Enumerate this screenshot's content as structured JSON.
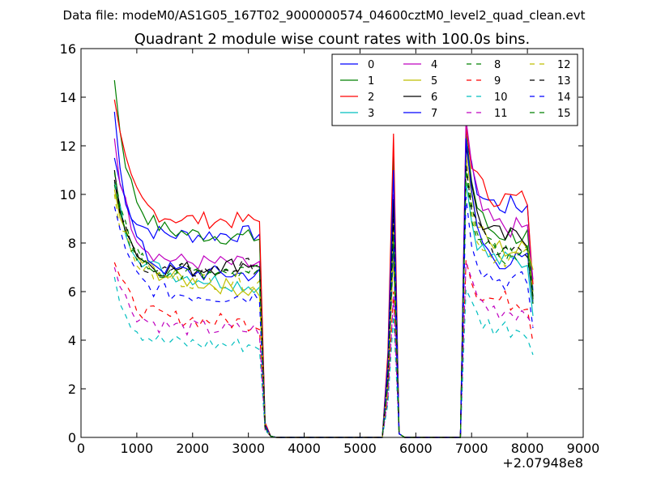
{
  "figure": {
    "suptitle": "Data file: modeM0/AS1G05_167T02_9000000574_04600cztM0_level2_quad_clean.evt"
  },
  "chart_data": {
    "type": "line",
    "title": "Quadrant 2 module wise count rates with 100.0s bins.",
    "xlabel": "",
    "ylabel": "",
    "x_offset_label": "+2.07948e8",
    "xlim": [
      0,
      9000
    ],
    "ylim": [
      0,
      16
    ],
    "xticks": [
      0,
      1000,
      2000,
      3000,
      4000,
      5000,
      6000,
      7000,
      8000,
      9000
    ],
    "yticks": [
      0,
      2,
      4,
      6,
      8,
      10,
      12,
      14,
      16
    ],
    "grid": false,
    "legend_position": "top-right",
    "segments": {
      "seg1": {
        "start": 600,
        "end": 3200,
        "step": 100
      },
      "seg2": [
        3300,
        3400
      ],
      "zero_range": [
        3500,
        5400
      ],
      "spike": [
        5500,
        5600,
        5700
      ],
      "zero_range2": [
        5800,
        6800
      ],
      "seg3": {
        "start": 6900,
        "end": 8100,
        "step": 100
      }
    },
    "series": [
      {
        "name": "0",
        "color": "#0000ff",
        "dash": "solid",
        "seg1_start": 11.5,
        "seg1_plateau": 8.2,
        "seg1_end": 8.4,
        "tail": [
          0.5,
          0.05
        ],
        "spike_peak": 9.0,
        "seg3_peak": 12.2,
        "seg3_plateau": 9.5,
        "seg3_end": 6.0
      },
      {
        "name": "1",
        "color": "#008000",
        "dash": "solid",
        "seg1_start": 14.7,
        "seg1_plateau": 8.5,
        "seg1_end": 8.2,
        "tail": [
          0.6,
          0.05
        ],
        "spike_peak": 11.8,
        "seg3_peak": 12.5,
        "seg3_plateau": 8.3,
        "seg3_end": 5.8
      },
      {
        "name": "2",
        "color": "#ff0000",
        "dash": "solid",
        "seg1_start": 13.9,
        "seg1_plateau": 9.0,
        "seg1_end": 8.9,
        "tail": [
          0.6,
          0.05
        ],
        "spike_peak": 12.5,
        "seg3_peak": 12.8,
        "seg3_plateau": 9.8,
        "seg3_end": 6.3
      },
      {
        "name": "3",
        "color": "#00bfbf",
        "dash": "solid",
        "seg1_start": 10.5,
        "seg1_plateau": 7.0,
        "seg1_end": 6.2,
        "tail": [
          0.4,
          0.05
        ],
        "spike_peak": 8.0,
        "seg3_peak": 10.5,
        "seg3_plateau": 7.2,
        "seg3_end": 5.0
      },
      {
        "name": "4",
        "color": "#bf00bf",
        "dash": "solid",
        "seg1_start": 12.3,
        "seg1_plateau": 7.3,
        "seg1_end": 7.1,
        "tail": [
          0.5,
          0.05
        ],
        "spike_peak": 10.0,
        "seg3_peak": 13.1,
        "seg3_plateau": 8.6,
        "seg3_end": 6.5
      },
      {
        "name": "5",
        "color": "#bfbf00",
        "dash": "solid",
        "seg1_start": 10.2,
        "seg1_plateau": 6.9,
        "seg1_end": 6.0,
        "tail": [
          0.4,
          0.05
        ],
        "spike_peak": 7.5,
        "seg3_peak": 11.6,
        "seg3_plateau": 7.7,
        "seg3_end": 6.9
      },
      {
        "name": "6",
        "color": "#000000",
        "dash": "solid",
        "seg1_start": 11.0,
        "seg1_plateau": 6.6,
        "seg1_end": 7.2,
        "tail": [
          0.5,
          0.05
        ],
        "spike_peak": 9.8,
        "seg3_peak": 12.0,
        "seg3_plateau": 8.2,
        "seg3_end": 5.7
      },
      {
        "name": "7",
        "color": "#0000ff",
        "dash": "solid",
        "seg1_start": 13.4,
        "seg1_plateau": 6.8,
        "seg1_end": 6.7,
        "tail": [
          0.5,
          0.05
        ],
        "spike_peak": 11.0,
        "seg3_peak": 12.3,
        "seg3_plateau": 7.2,
        "seg3_end": 5.5
      },
      {
        "name": "8",
        "color": "#008000",
        "dash": "dashed",
        "seg1_start": 10.9,
        "seg1_plateau": 6.6,
        "seg1_end": 7.0,
        "tail": [
          0.4,
          0.05
        ],
        "spike_peak": 8.6,
        "seg3_peak": 11.2,
        "seg3_plateau": 7.8,
        "seg3_end": 5.6
      },
      {
        "name": "9",
        "color": "#ff0000",
        "dash": "dashed",
        "seg1_start": 7.2,
        "seg1_plateau": 5.0,
        "seg1_end": 4.7,
        "tail": [
          0.3,
          0.05
        ],
        "spike_peak": 6.0,
        "seg3_peak": 7.3,
        "seg3_plateau": 5.6,
        "seg3_end": 3.9
      },
      {
        "name": "10",
        "color": "#00bfbf",
        "dash": "dashed",
        "seg1_start": 6.6,
        "seg1_plateau": 3.9,
        "seg1_end": 3.8,
        "tail": [
          0.3,
          0.05
        ],
        "spike_peak": 5.0,
        "seg3_peak": 6.1,
        "seg3_plateau": 4.5,
        "seg3_end": 3.4
      },
      {
        "name": "11",
        "color": "#bf00bf",
        "dash": "dashed",
        "seg1_start": 7.0,
        "seg1_plateau": 4.6,
        "seg1_end": 4.4,
        "tail": [
          0.3,
          0.05
        ],
        "spike_peak": 5.8,
        "seg3_peak": 7.2,
        "seg3_plateau": 5.2,
        "seg3_end": 4.6
      },
      {
        "name": "12",
        "color": "#bfbf00",
        "dash": "dashed",
        "seg1_start": 10.0,
        "seg1_plateau": 6.5,
        "seg1_end": 6.4,
        "tail": [
          0.4,
          0.05
        ],
        "spike_peak": 8.8,
        "seg3_peak": 10.8,
        "seg3_plateau": 7.4,
        "seg3_end": 6.0
      },
      {
        "name": "13",
        "color": "#000000",
        "dash": "dashed",
        "seg1_start": 10.6,
        "seg1_plateau": 6.5,
        "seg1_end": 7.1,
        "tail": [
          0.4,
          0.05
        ],
        "spike_peak": 9.0,
        "seg3_peak": 11.2,
        "seg3_plateau": 7.6,
        "seg3_end": 5.8
      },
      {
        "name": "14",
        "color": "#0000ff",
        "dash": "dashed",
        "seg1_start": 9.5,
        "seg1_plateau": 5.9,
        "seg1_end": 5.8,
        "tail": [
          0.4,
          0.05
        ],
        "spike_peak": 7.8,
        "seg3_peak": 9.9,
        "seg3_plateau": 6.4,
        "seg3_end": 4.5
      },
      {
        "name": "15",
        "color": "#008000",
        "dash": "dashed",
        "seg1_start": 10.4,
        "seg1_plateau": 6.8,
        "seg1_end": 6.6,
        "tail": [
          0.4,
          0.05
        ],
        "spike_peak": 8.3,
        "seg3_peak": 11.0,
        "seg3_plateau": 7.5,
        "seg3_end": 5.5
      }
    ]
  }
}
